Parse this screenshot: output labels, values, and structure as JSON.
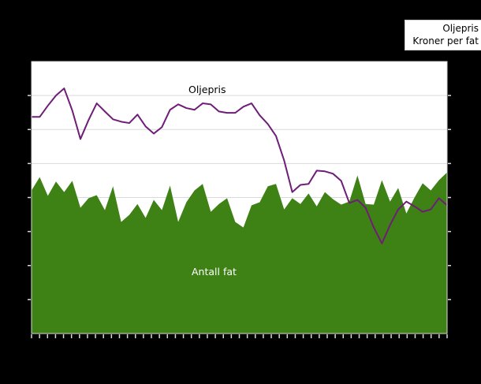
{
  "page": {
    "background": "#000000",
    "plot_background": "#ffffff"
  },
  "legend": {
    "title": "Oljepris",
    "subtitle": "Kroner per fat"
  },
  "labels": {
    "oljepris": "Oljepris",
    "antall_fat": "Antall fat"
  },
  "chart_data": {
    "type": "line",
    "title": "",
    "xlabel": "",
    "ylabel": "",
    "x_axis": {
      "tick_count": 53,
      "tick_labels_visible": false,
      "implied_unit": "weeks"
    },
    "y_axis": {
      "divisions": 8,
      "tick_labels_visible": false,
      "note": "no numeric axis labels are rendered; values below are in gridline divisions counted from the bottom axis (0) to the plot top (8)"
    },
    "ylim": [
      0,
      8
    ],
    "grid": "horizontal",
    "gridline_color": "#d9d9d9",
    "tick_color": "#d9d9d9",
    "series": [
      {
        "name": "Oljepris",
        "type": "line",
        "color": "#6f1d79",
        "legend_note": "Kroner per fat",
        "values": [
          6.37,
          6.37,
          6.7,
          7.0,
          7.21,
          6.56,
          5.72,
          6.28,
          6.77,
          6.53,
          6.3,
          6.23,
          6.19,
          6.44,
          6.09,
          5.88,
          6.07,
          6.58,
          6.74,
          6.63,
          6.58,
          6.77,
          6.74,
          6.53,
          6.49,
          6.49,
          6.67,
          6.77,
          6.42,
          6.16,
          5.81,
          5.09,
          4.16,
          4.37,
          4.4,
          4.79,
          4.77,
          4.7,
          4.49,
          3.84,
          3.93,
          3.7,
          3.12,
          2.65,
          3.19,
          3.65,
          3.88,
          3.74,
          3.58,
          3.65,
          3.98,
          3.77
        ]
      },
      {
        "name": "Antall fat",
        "type": "area",
        "color": "#3e8114",
        "values": [
          4.21,
          4.6,
          4.05,
          4.47,
          4.16,
          4.49,
          3.7,
          3.98,
          4.07,
          3.63,
          4.33,
          3.28,
          3.49,
          3.81,
          3.4,
          3.93,
          3.63,
          4.35,
          3.28,
          3.86,
          4.21,
          4.4,
          3.58,
          3.81,
          3.98,
          3.28,
          3.12,
          3.77,
          3.86,
          4.33,
          4.4,
          3.65,
          3.98,
          3.81,
          4.12,
          3.74,
          4.16,
          3.95,
          3.79,
          3.88,
          4.65,
          3.81,
          3.79,
          4.51,
          3.88,
          4.28,
          3.53,
          4.0,
          4.42,
          4.21,
          4.51,
          4.74
        ]
      }
    ]
  }
}
